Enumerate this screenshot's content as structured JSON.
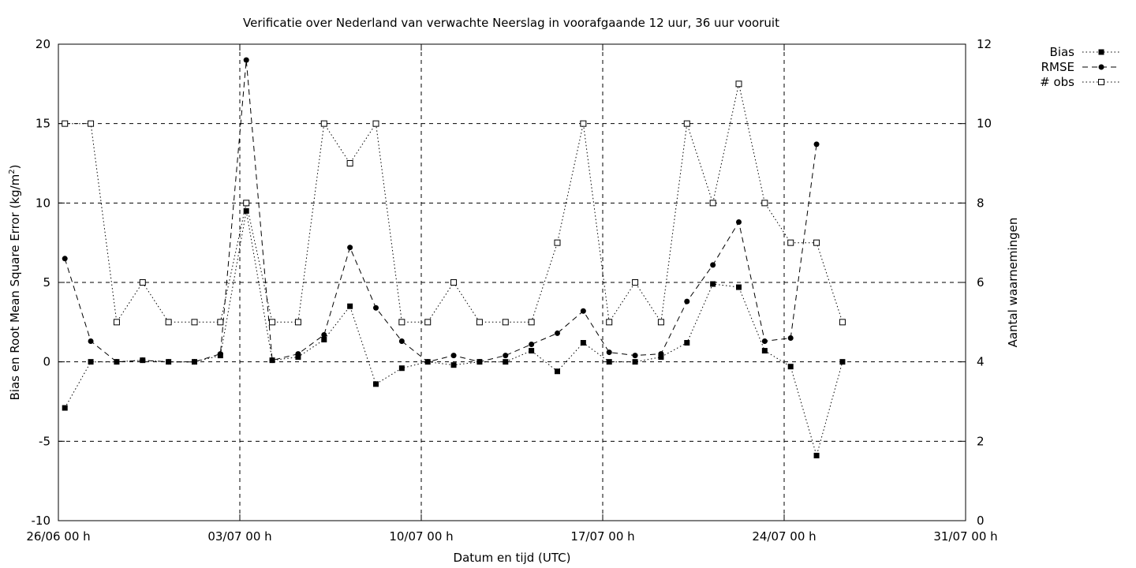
{
  "chart_data": {
    "type": "line",
    "title": "Verificatie over Nederland van verwachte Neerslag in voorafgaande 12 uur, 36 uur vooruit",
    "xlabel": "Datum en tijd (UTC)",
    "ylabel": "Bias en Root Mean Square Error (kg/m",
    "ylabel_sup": "2",
    "ylabel_close": ")",
    "y2label": "Aantal waarnemingen",
    "x_ticks": [
      "26/06 00 h",
      "03/07 00 h",
      "10/07 00 h",
      "17/07 00 h",
      "24/07 00 h",
      "31/07 00 h"
    ],
    "x_range_days": [
      0,
      35
    ],
    "ylim": [
      -10,
      20
    ],
    "y_ticks": [
      "-10",
      "-5",
      "0",
      "5",
      "10",
      "15",
      "20"
    ],
    "y2lim": [
      0,
      12
    ],
    "y2_ticks": [
      "0",
      "2",
      "4",
      "6",
      "8",
      "10",
      "12"
    ],
    "grid": "dashed, major ticks",
    "legend_position": "outside top-right",
    "x_days": [
      0.25,
      1.25,
      2.25,
      3.25,
      4.25,
      5.25,
      6.25,
      7.25,
      8.25,
      9.25,
      10.25,
      11.25,
      12.25,
      13.25,
      14.25,
      15.25,
      16.25,
      17.25,
      18.25,
      19.25,
      20.25,
      21.25,
      22.25,
      23.25,
      24.25,
      25.25,
      26.25,
      27.25,
      28.25,
      29.25,
      30.25
    ],
    "series": [
      {
        "name": "Bias",
        "axis": "y",
        "style": "dotted",
        "marker": "filled-square",
        "values": [
          -2.9,
          0.0,
          0.0,
          0.1,
          0.0,
          0.0,
          0.4,
          9.5,
          0.1,
          0.3,
          1.4,
          3.5,
          -1.4,
          -0.4,
          0.0,
          -0.2,
          0.0,
          0.0,
          0.7,
          -0.6,
          1.2,
          0.0,
          0.0,
          0.3,
          1.2,
          4.9,
          4.7,
          0.7,
          -0.3,
          -5.9,
          0.0
        ]
      },
      {
        "name": "RMSE",
        "axis": "y",
        "style": "dashed",
        "marker": "filled-circle",
        "values": [
          6.5,
          1.3,
          0.0,
          0.1,
          0.0,
          0.0,
          0.5,
          19.0,
          0.1,
          0.5,
          1.7,
          7.2,
          3.4,
          1.3,
          0.0,
          0.4,
          0.0,
          0.4,
          1.1,
          1.8,
          3.2,
          0.6,
          0.4,
          0.5,
          3.8,
          6.1,
          8.8,
          1.3,
          1.5,
          13.7,
          null
        ]
      },
      {
        "name": "# obs",
        "axis": "y2",
        "style": "dotted",
        "marker": "open-square",
        "values": [
          10,
          10,
          5,
          6,
          5,
          5,
          5,
          8,
          5,
          5,
          10,
          9,
          10,
          5,
          5,
          6,
          5,
          5,
          5,
          7,
          10,
          5,
          6,
          5,
          10,
          8,
          11,
          8,
          7,
          7,
          5
        ]
      }
    ]
  }
}
